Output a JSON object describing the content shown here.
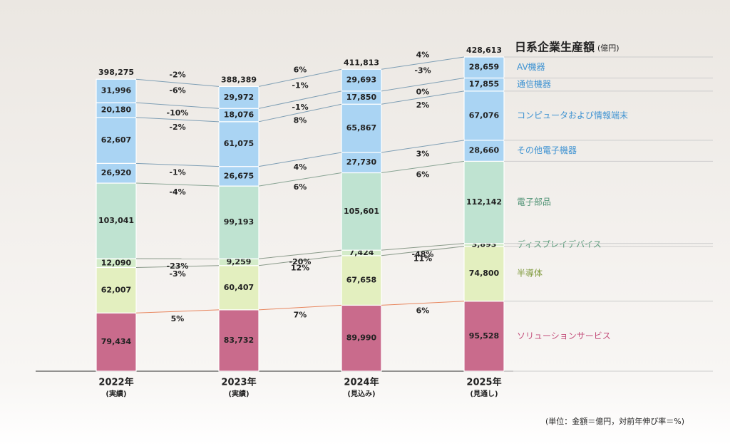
{
  "chart_data": {
    "type": "bar",
    "stacked": true,
    "categories": [
      "2022年",
      "2023年",
      "2024年",
      "2025年"
    ],
    "category_notes": [
      "(実績)",
      "(実績)",
      "(見込み)",
      "(見通し)"
    ],
    "total_title": "日系企業生産額",
    "total_unit": "(億円)",
    "totals": [
      398275,
      388389,
      411813,
      428613
    ],
    "total_labels": [
      "398,275",
      "388,389",
      "411,813",
      "428,613"
    ],
    "total_growth_labels": [
      "-2%",
      "6%",
      "4%"
    ],
    "series": [
      {
        "name": "ソリューションサービス",
        "color": "#c96b8c",
        "label_color": "#c4507c",
        "line_color": "#e8865e",
        "values": [
          79434,
          83732,
          89990,
          95528
        ],
        "value_labels": [
          "79,434",
          "83,732",
          "89,990",
          "95,528"
        ],
        "growth_labels": [
          "5%",
          "7%",
          "6%"
        ]
      },
      {
        "name": "半導体",
        "color": "#e3efbf",
        "label_color": "#7f9a3c",
        "line_color": "#8a9a8a",
        "values": [
          62007,
          60407,
          67658,
          74800
        ],
        "value_labels": [
          "62,007",
          "60,407",
          "67,658",
          "74,800"
        ],
        "growth_labels": [
          "-3%",
          "12%",
          "11%"
        ]
      },
      {
        "name": "ディスプレイデバイス",
        "color": "#d3ebc9",
        "label_color": "#5a9a7a",
        "line_color": "#8a9a8a",
        "values": [
          12090,
          9259,
          7424,
          3893
        ],
        "value_labels": [
          "12,090",
          "9,259",
          "7,424",
          "3,893"
        ],
        "growth_labels": [
          "-23%",
          "-20%",
          "-48%"
        ]
      },
      {
        "name": "電子部品",
        "color": "#bfe3d1",
        "label_color": "#4f9274",
        "line_color": "#8aa595",
        "values": [
          103041,
          99193,
          105601,
          112142
        ],
        "value_labels": [
          "103,041",
          "99,193",
          "105,601",
          "112,142"
        ],
        "growth_labels": [
          "-4%",
          "6%",
          "6%"
        ]
      },
      {
        "name": "その他電子機器",
        "color": "#aad4f3",
        "label_color": "#3f93d2",
        "line_color": "#7f9fb5",
        "values": [
          26920,
          26675,
          27730,
          28660
        ],
        "value_labels": [
          "26,920",
          "26,675",
          "27,730",
          "28,660"
        ],
        "growth_labels": [
          "-1%",
          "4%",
          "3%"
        ]
      },
      {
        "name": "コンピュータおよび情報端末",
        "color": "#aad4f3",
        "label_color": "#3f93d2",
        "line_color": "#7f9fb5",
        "values": [
          62607,
          61075,
          65867,
          67076
        ],
        "value_labels": [
          "62,607",
          "61,075",
          "65,867",
          "67,076"
        ],
        "growth_labels": [
          "-2%",
          "8%",
          "2%"
        ]
      },
      {
        "name": "通信機器",
        "color": "#aad4f3",
        "label_color": "#3f93d2",
        "line_color": "#7f9fb5",
        "values": [
          20180,
          18076,
          17850,
          17855
        ],
        "value_labels": [
          "20,180",
          "18,076",
          "17,850",
          "17,855"
        ],
        "growth_labels": [
          "-10%",
          "-1%",
          "0%"
        ]
      },
      {
        "name": "AV機器",
        "color": "#aad4f3",
        "label_color": "#3f93d2",
        "line_color": "#7f9fb5",
        "values": [
          31996,
          29972,
          29693,
          28659
        ],
        "value_labels": [
          "31,996",
          "29,972",
          "29,693",
          "28,659"
        ],
        "growth_labels": [
          "-6%",
          "-1%",
          "-3%"
        ]
      }
    ],
    "note": "(単位：金額＝億円，対前年伸び率＝%)"
  }
}
